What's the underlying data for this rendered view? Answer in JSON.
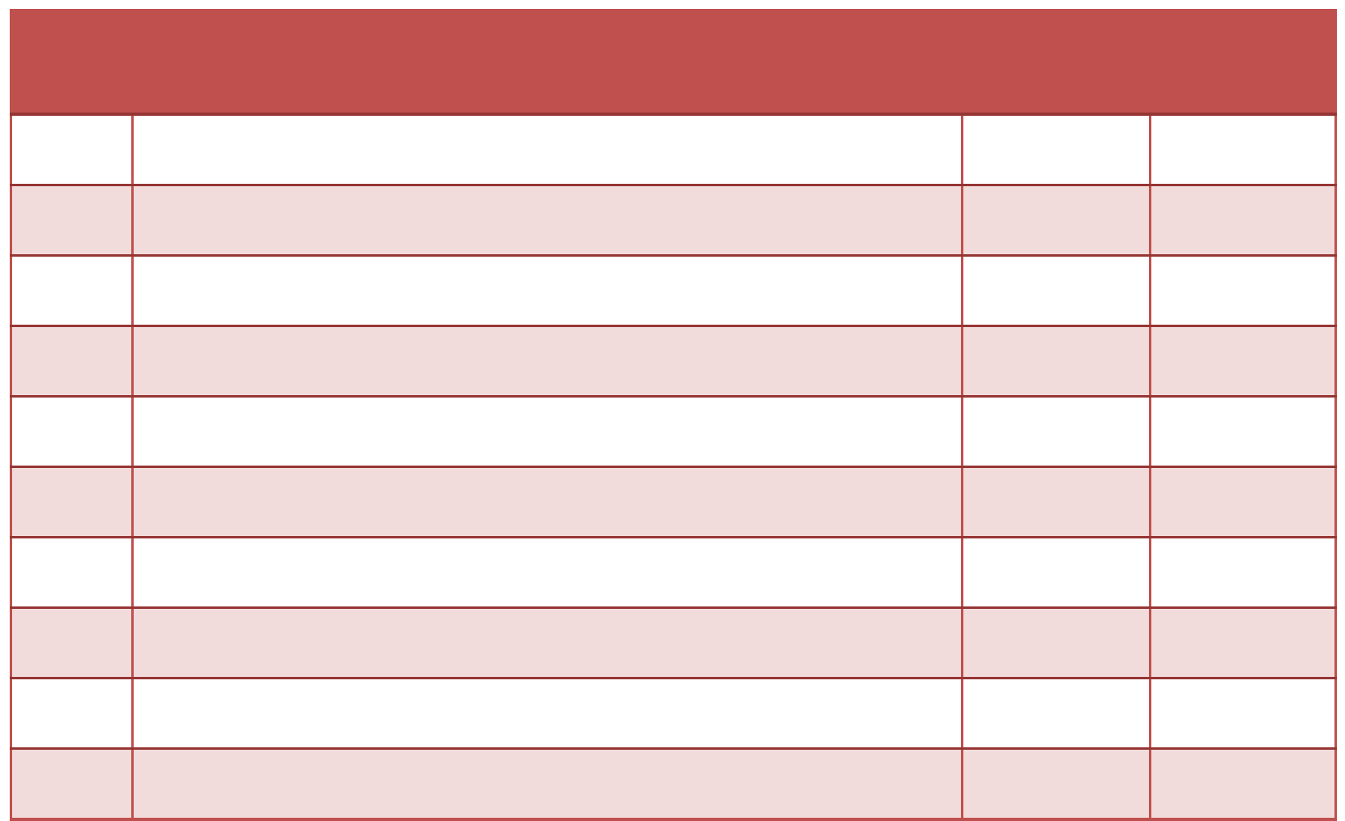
{
  "page": {
    "background": "#FFFFFF"
  },
  "table": {
    "style": {
      "header_fill": "#C0504D",
      "band_fill": "#F2DCDB",
      "plain_fill": "#FFFFFF",
      "h_border": "#963634",
      "v_border": "#C0504D",
      "outer_border": "#C0504D"
    },
    "header": {
      "text": ""
    },
    "rows": [
      {
        "cells": [
          "",
          "",
          "",
          ""
        ]
      },
      {
        "cells": [
          "",
          "",
          "",
          ""
        ]
      },
      {
        "cells": [
          "",
          "",
          "",
          ""
        ]
      },
      {
        "cells": [
          "",
          "",
          "",
          ""
        ]
      },
      {
        "cells": [
          "",
          "",
          "",
          ""
        ]
      },
      {
        "cells": [
          "",
          "",
          "",
          ""
        ]
      },
      {
        "cells": [
          "",
          "",
          "",
          ""
        ]
      },
      {
        "cells": [
          "",
          "",
          "",
          ""
        ]
      },
      {
        "cells": [
          "",
          "",
          "",
          ""
        ]
      },
      {
        "cells": [
          "",
          "",
          "",
          ""
        ]
      }
    ]
  }
}
